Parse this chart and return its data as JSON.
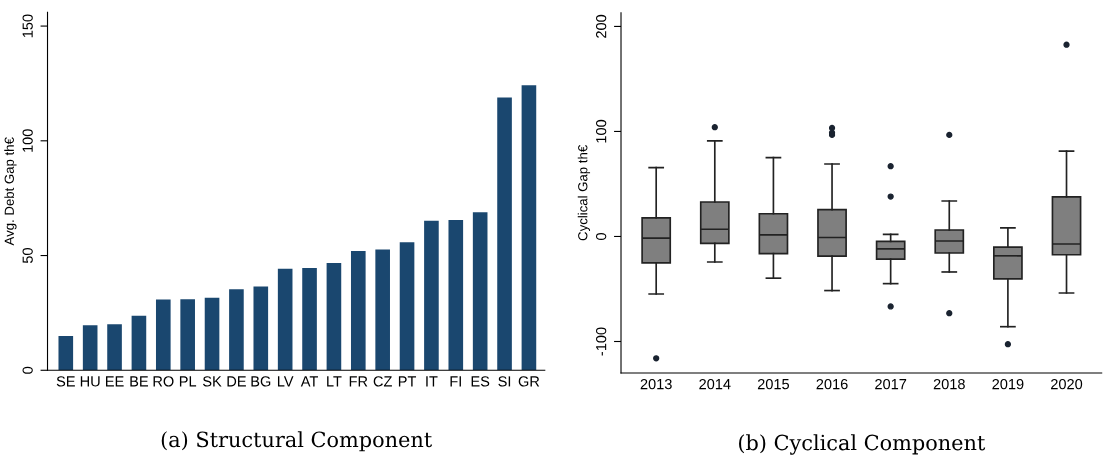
{
  "chart_data": [
    {
      "type": "bar",
      "ylabel": "Avg. Debt Gap th€",
      "annotations": [
        "(a) Structural Component"
      ],
      "categories": [
        "SE",
        "HU",
        "EE",
        "BE",
        "RO",
        "PL",
        "SK",
        "DE",
        "BG",
        "LV",
        "AT",
        "LT",
        "FR",
        "CZ",
        "PT",
        "IT",
        "FI",
        "ES",
        "SI",
        "GR"
      ],
      "values": [
        14.9,
        19.6,
        20.1,
        23.8,
        30.8,
        31.0,
        31.6,
        35.3,
        36.5,
        44.2,
        44.6,
        46.8,
        52.0,
        52.6,
        55.8,
        65.2,
        65.5,
        68.9,
        118.9,
        124.2
      ],
      "color": "#1a476f",
      "ylim": [
        0,
        156
      ],
      "yticks": [
        0,
        50,
        100,
        150
      ],
      "grid": false,
      "legend": false
    },
    {
      "type": "box",
      "ylabel": "Cyclical Gap th€",
      "annotations": [
        "(b) Cyclical Component"
      ],
      "categories": [
        "2013",
        "2014",
        "2015",
        "2016",
        "2017",
        "2018",
        "2019",
        "2020"
      ],
      "color": "#7f7f7f",
      "boxes": [
        {
          "low": -54.8,
          "q1": -25.2,
          "median": -1.6,
          "q3": 17.7,
          "high": 65.6,
          "outliers": [
            -116
          ]
        },
        {
          "low": -24.3,
          "q1": -6.6,
          "median": 6.9,
          "q3": 32.8,
          "high": 91,
          "outliers": [
            104
          ]
        },
        {
          "low": -39.7,
          "q1": -16.4,
          "median": 1.6,
          "q3": 21.6,
          "high": 75
        },
        {
          "low": -51.5,
          "q1": -18.7,
          "median": -1,
          "q3": 25.6,
          "high": 69,
          "outliers": [
            103.3,
            98.7,
            96.7
          ]
        },
        {
          "low": -44.9,
          "q1": -21.6,
          "median": -11.8,
          "q3": -4.6,
          "high": 2,
          "outliers": [
            66.9,
            38,
            -66.6
          ]
        },
        {
          "low": -33.8,
          "q1": -15.7,
          "median": -4.3,
          "q3": 6.2,
          "high": 33.8,
          "outliers": [
            96.7,
            -73.1
          ]
        },
        {
          "low": -85.9,
          "q1": -40.3,
          "median": -18.4,
          "q3": -10.2,
          "high": 8.2,
          "outliers": [
            -102.6
          ]
        },
        {
          "low": -53.8,
          "q1": -17.4,
          "median": -7.2,
          "q3": 37.7,
          "high": 81.3,
          "outliers": [
            182.6
          ]
        }
      ],
      "ylim": [
        -130,
        213
      ],
      "yticks": [
        {
          "value": -100,
          "label": "-100"
        },
        0,
        100,
        200
      ],
      "grid": false,
      "legend": false
    }
  ]
}
